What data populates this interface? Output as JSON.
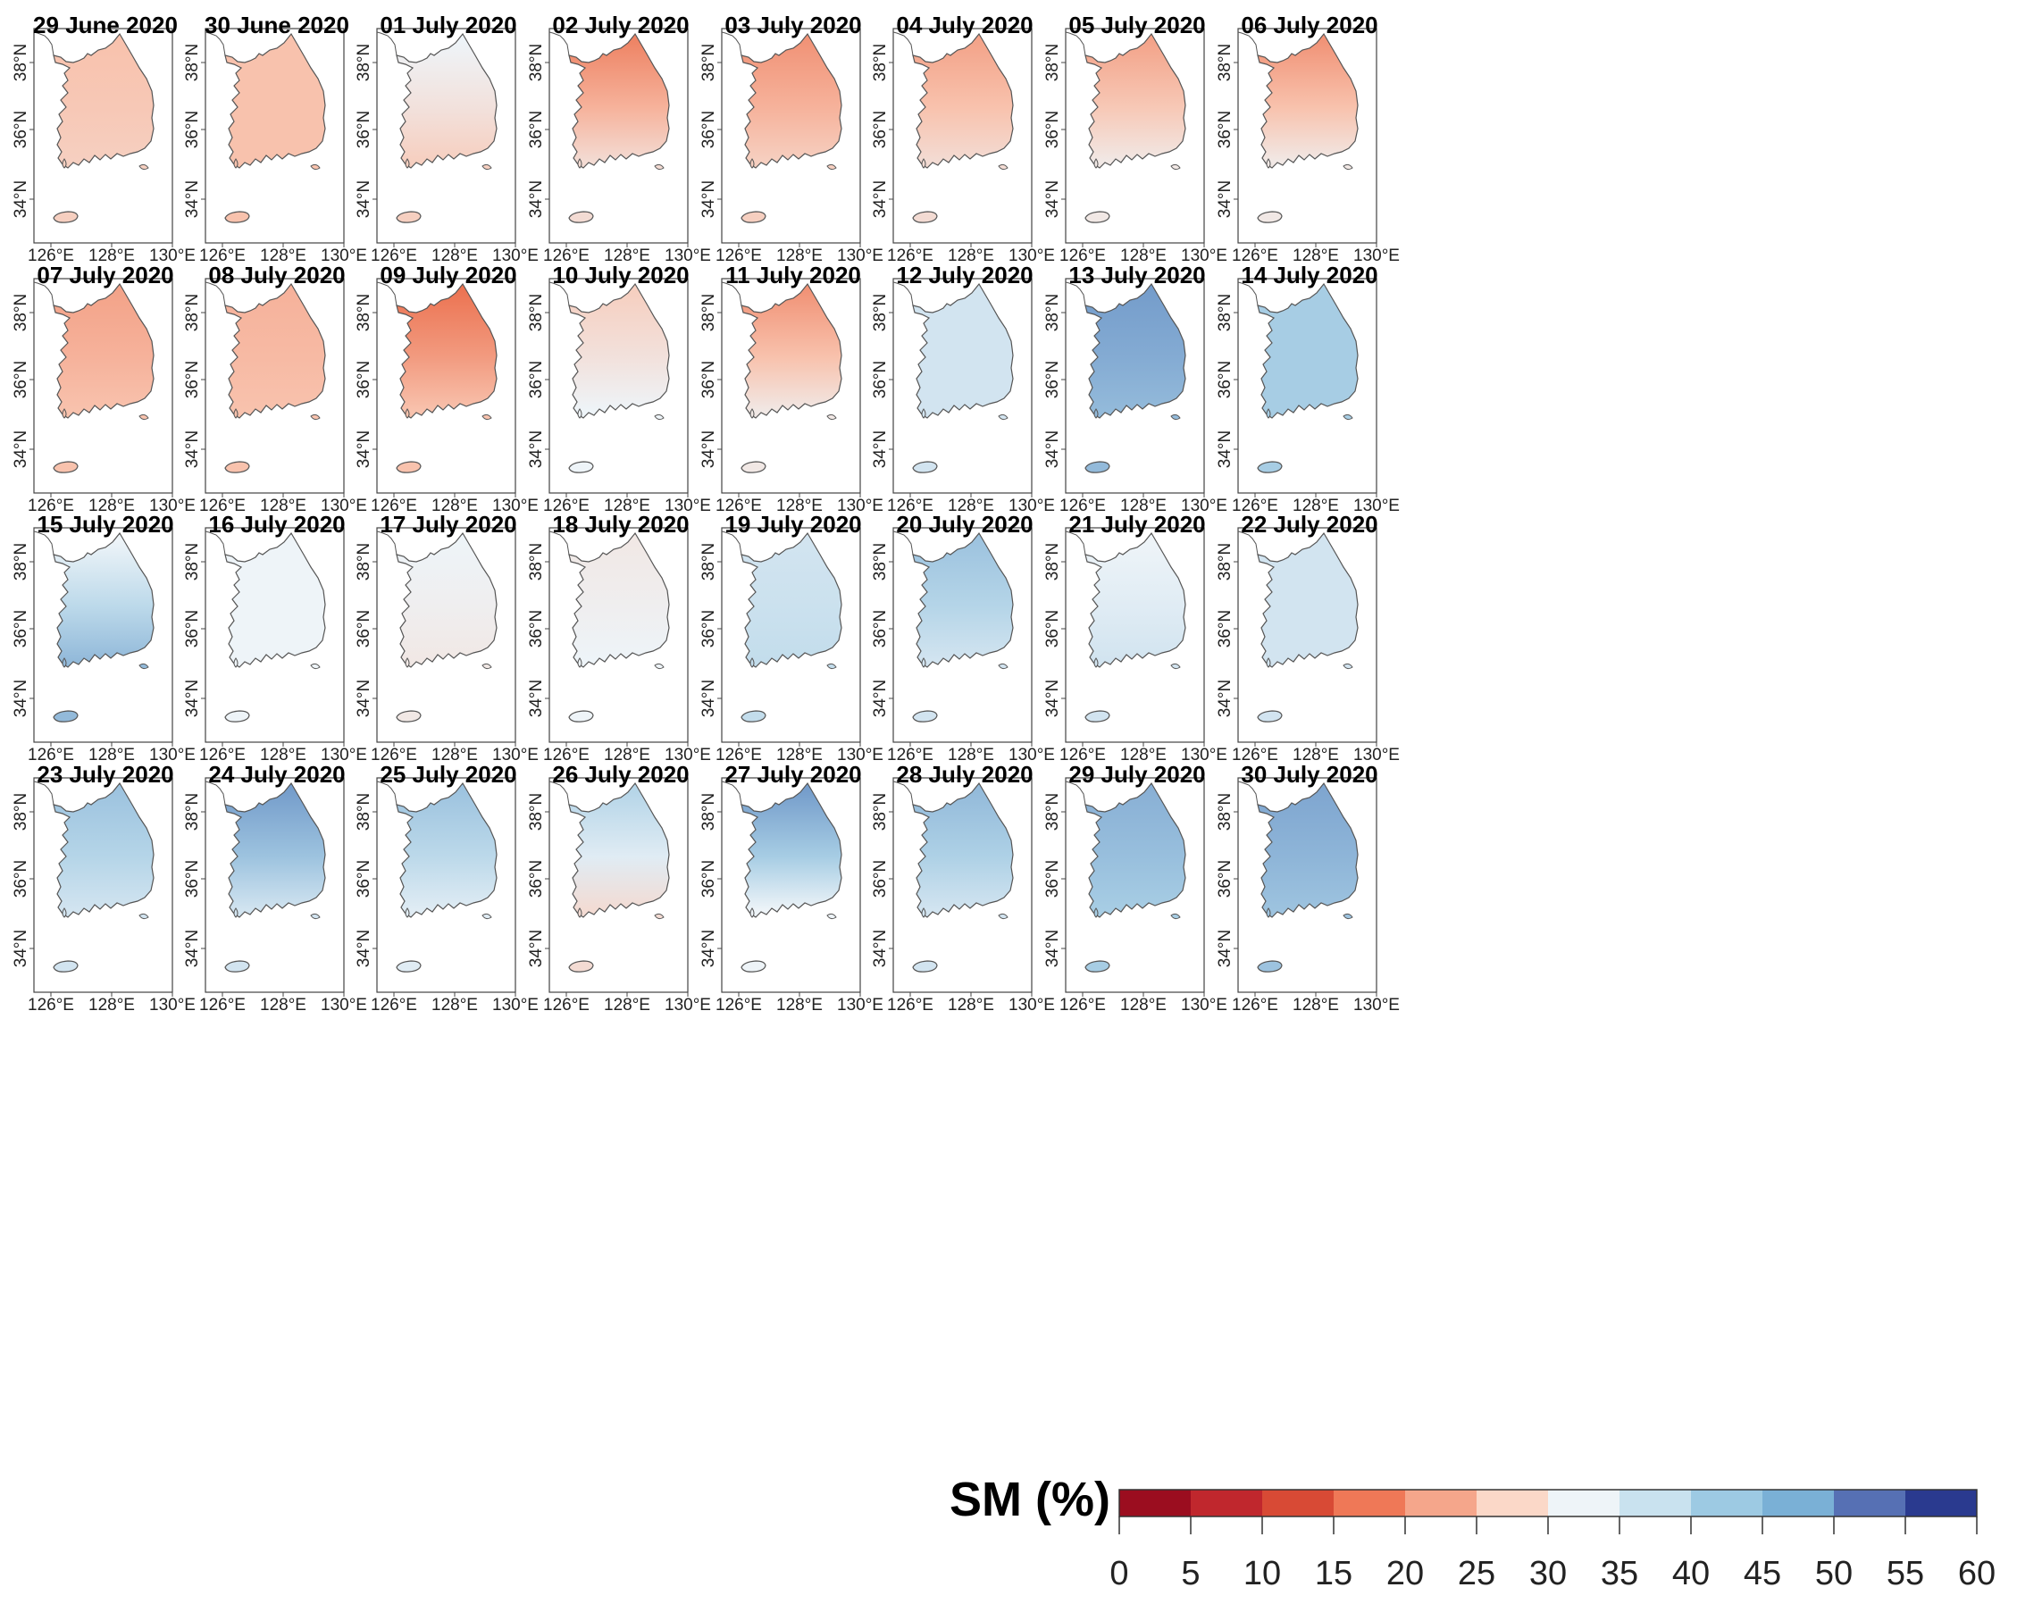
{
  "figure": {
    "variable": "SM (%)",
    "region": "South Korea"
  },
  "axes": {
    "x_ticks": [
      "126°E",
      "128°E",
      "130°E"
    ],
    "y_ticks": [
      "38°N",
      "36°N",
      "34°N"
    ]
  },
  "panels": [
    {
      "date": "29 June 2020",
      "north": 0.75,
      "south": 0.3
    },
    {
      "date": "30 June 2020",
      "north": 0.75,
      "south": 0.25
    },
    {
      "date": "01 July 2020",
      "north": 0.55,
      "south": 0.3
    },
    {
      "date": "02 July 2020",
      "north": 0.95,
      "south": 0.35
    },
    {
      "date": "03 July 2020",
      "north": 0.9,
      "south": 0.3
    },
    {
      "date": "04 July 2020",
      "north": 0.85,
      "south": 0.35
    },
    {
      "date": "05 July 2020",
      "north": 0.85,
      "south": 0.4
    },
    {
      "date": "06 July 2020",
      "north": 0.9,
      "south": 0.4
    },
    {
      "date": "07 July 2020",
      "north": 0.85,
      "south": 0.25
    },
    {
      "date": "08 July 2020",
      "north": 0.8,
      "south": 0.25
    },
    {
      "date": "09 July 2020",
      "north": 1.0,
      "south": 0.25
    },
    {
      "date": "10 July 2020",
      "north": 0.7,
      "south": 0.45
    },
    {
      "date": "11 July 2020",
      "north": 0.9,
      "south": 0.4
    },
    {
      "date": "12 July 2020",
      "north": 0.45,
      "south": 0.55
    },
    {
      "date": "13 July 2020",
      "north": 0.05,
      "south": 0.8
    },
    {
      "date": "14 July 2020",
      "north": 0.3,
      "south": 0.7
    },
    {
      "date": "15 July 2020",
      "north": 0.55,
      "south": 0.8
    },
    {
      "date": "16 July 2020",
      "north": 0.55,
      "south": 0.45
    },
    {
      "date": "17 July 2020",
      "north": 0.55,
      "south": 0.4
    },
    {
      "date": "18 July 2020",
      "north": 0.6,
      "south": 0.45
    },
    {
      "date": "19 July 2020",
      "north": 0.45,
      "south": 0.6
    },
    {
      "date": "20 July 2020",
      "north": 0.25,
      "south": 0.55
    },
    {
      "date": "21 July 2020",
      "north": 0.55,
      "south": 0.55
    },
    {
      "date": "22 July 2020",
      "north": 0.45,
      "south": 0.55
    },
    {
      "date": "23 July 2020",
      "north": 0.25,
      "south": 0.55
    },
    {
      "date": "24 July 2020",
      "north": 0.05,
      "south": 0.55
    },
    {
      "date": "25 July 2020",
      "north": 0.25,
      "south": 0.5
    },
    {
      "date": "26 July 2020",
      "north": 0.35,
      "south": 0.35
    },
    {
      "date": "27 July 2020",
      "north": 0.05,
      "south": 0.45
    },
    {
      "date": "28 July 2020",
      "north": 0.2,
      "south": 0.55
    },
    {
      "date": "29 July 2020",
      "north": 0.15,
      "south": 0.7
    },
    {
      "date": "30 July 2020",
      "north": 0.1,
      "south": 0.75
    }
  ],
  "legend": {
    "title": "SM (%)",
    "ticks": [
      "0",
      "5",
      "10",
      "15",
      "20",
      "25",
      "30",
      "35",
      "40",
      "45",
      "50",
      "55",
      "60"
    ],
    "colors": [
      "#9b0d1f",
      "#c0272d",
      "#d84a35",
      "#ef7857",
      "#f5a68b",
      "#fbd8c8",
      "#eef4f8",
      "#c9e2ef",
      "#9dcae3",
      "#7ab0d6",
      "#5670b4",
      "#2a3a8f"
    ]
  }
}
